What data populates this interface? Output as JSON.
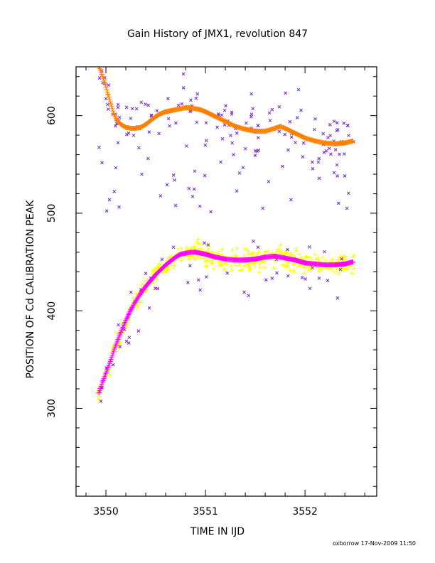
{
  "chart_data": {
    "type": "scatter",
    "title": "Gain History of JMX1, revolution 847",
    "xlabel": "TIME IN IJD",
    "ylabel": "POSITION OF Cd CALIBRATION PEAK",
    "footer": "oxborrow 17-Nov-2009 11:50",
    "xlim": [
      3549.7,
      3552.72
    ],
    "ylim": [
      210,
      650
    ],
    "x_ticks": [
      3550,
      3551,
      3552
    ],
    "x_tick_labels": [
      "3550",
      "3551",
      "3552"
    ],
    "y_ticks": [
      300,
      400,
      500,
      600
    ],
    "y_tick_labels": [
      "300",
      "400",
      "500",
      "600"
    ],
    "grid": false,
    "legend": "none",
    "colors": {
      "low_points": "#ffff00",
      "high_points": "#7a1fd6",
      "low_fit": "#ff00ff",
      "high_fit": "#ff8000"
    },
    "series": [
      {
        "marker": "plus",
        "color": "#ff00ff",
        "x": [
          3549.93,
          3549.95,
          3549.97,
          3550.0,
          3550.05,
          3550.1,
          3550.15,
          3550.2,
          3550.25,
          3550.3,
          3550.35,
          3550.4,
          3550.45,
          3550.5,
          3550.55,
          3550.6,
          3550.65,
          3550.7,
          3550.75,
          3550.8,
          3550.85,
          3550.9,
          3550.95,
          3551.0,
          3551.1,
          3551.2,
          3551.3,
          3551.4,
          3551.5,
          3551.6,
          3551.7,
          3551.8,
          3551.9,
          3552.0,
          3552.1,
          3552.2,
          3552.3,
          3552.4,
          3552.48
        ],
        "y": [
          316,
          322,
          328,
          336,
          350,
          365,
          378,
          390,
          401,
          410,
          418,
          425,
          431,
          437,
          442,
          447,
          451,
          455,
          458,
          459,
          460,
          460,
          459,
          458,
          455,
          453,
          452,
          452,
          453,
          455,
          456,
          454,
          452,
          449,
          448,
          447,
          447,
          448,
          450
        ]
      },
      {
        "marker": "plus",
        "color": "#ff8000",
        "x": [
          3549.93,
          3549.96,
          3549.99,
          3550.02,
          3550.05,
          3550.08,
          3550.11,
          3550.15,
          3550.2,
          3550.25,
          3550.3,
          3550.35,
          3550.4,
          3550.45,
          3550.5,
          3550.55,
          3550.6,
          3550.65,
          3550.7,
          3550.75,
          3550.8,
          3550.85,
          3550.9,
          3550.95,
          3551.0,
          3551.1,
          3551.2,
          3551.3,
          3551.4,
          3551.5,
          3551.6,
          3551.7,
          3551.75,
          3551.8,
          3551.9,
          3552.0,
          3552.1,
          3552.2,
          3552.3,
          3552.4,
          3552.48
        ],
        "y": [
          650,
          642,
          633,
          622,
          612,
          602,
          595,
          591,
          588,
          587,
          587,
          588,
          591,
          595,
          599,
          602,
          604,
          605,
          606,
          607,
          608,
          608,
          607,
          606,
          604,
          599,
          594,
          589,
          586,
          584,
          584,
          587,
          589,
          587,
          582,
          577,
          574,
          572,
          571,
          572,
          574
        ]
      }
    ]
  }
}
